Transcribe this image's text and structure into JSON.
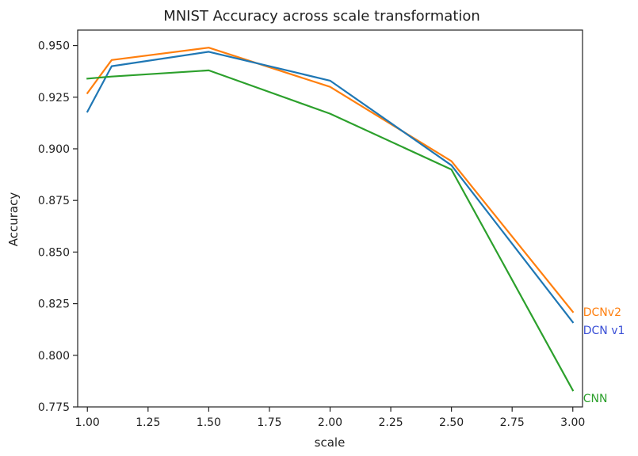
{
  "chart_data": {
    "type": "line",
    "title": "MNIST Accuracy across scale transformation",
    "xlabel": "scale",
    "ylabel": "Accuracy",
    "xlim": [
      0.96,
      3.04
    ],
    "ylim": [
      0.775,
      0.9575
    ],
    "xticks": [
      "1.00",
      "1.25",
      "1.50",
      "1.75",
      "2.00",
      "2.25",
      "2.50",
      "2.75",
      "3.00"
    ],
    "yticks": [
      "0.775",
      "0.800",
      "0.825",
      "0.850",
      "0.875",
      "0.900",
      "0.925",
      "0.950"
    ],
    "x": [
      1.0,
      1.1,
      1.5,
      2.0,
      2.5,
      3.0
    ],
    "series": [
      {
        "name": "DCNv2",
        "color": "#ff7f0e",
        "values": [
          0.927,
          0.943,
          0.949,
          0.93,
          0.894,
          0.821
        ]
      },
      {
        "name": "DCN v1",
        "color": "#1f77b4",
        "values": [
          0.918,
          0.94,
          0.947,
          0.933,
          0.892,
          0.816
        ]
      },
      {
        "name": "CNN",
        "color": "#2ca02c",
        "values": [
          0.934,
          0.935,
          0.938,
          0.917,
          0.89,
          0.783
        ]
      }
    ],
    "series_label_colors": [
      "#ff7f0e",
      "#3a4fd6",
      "#2ca02c"
    ],
    "grid": false,
    "legend": "none"
  }
}
